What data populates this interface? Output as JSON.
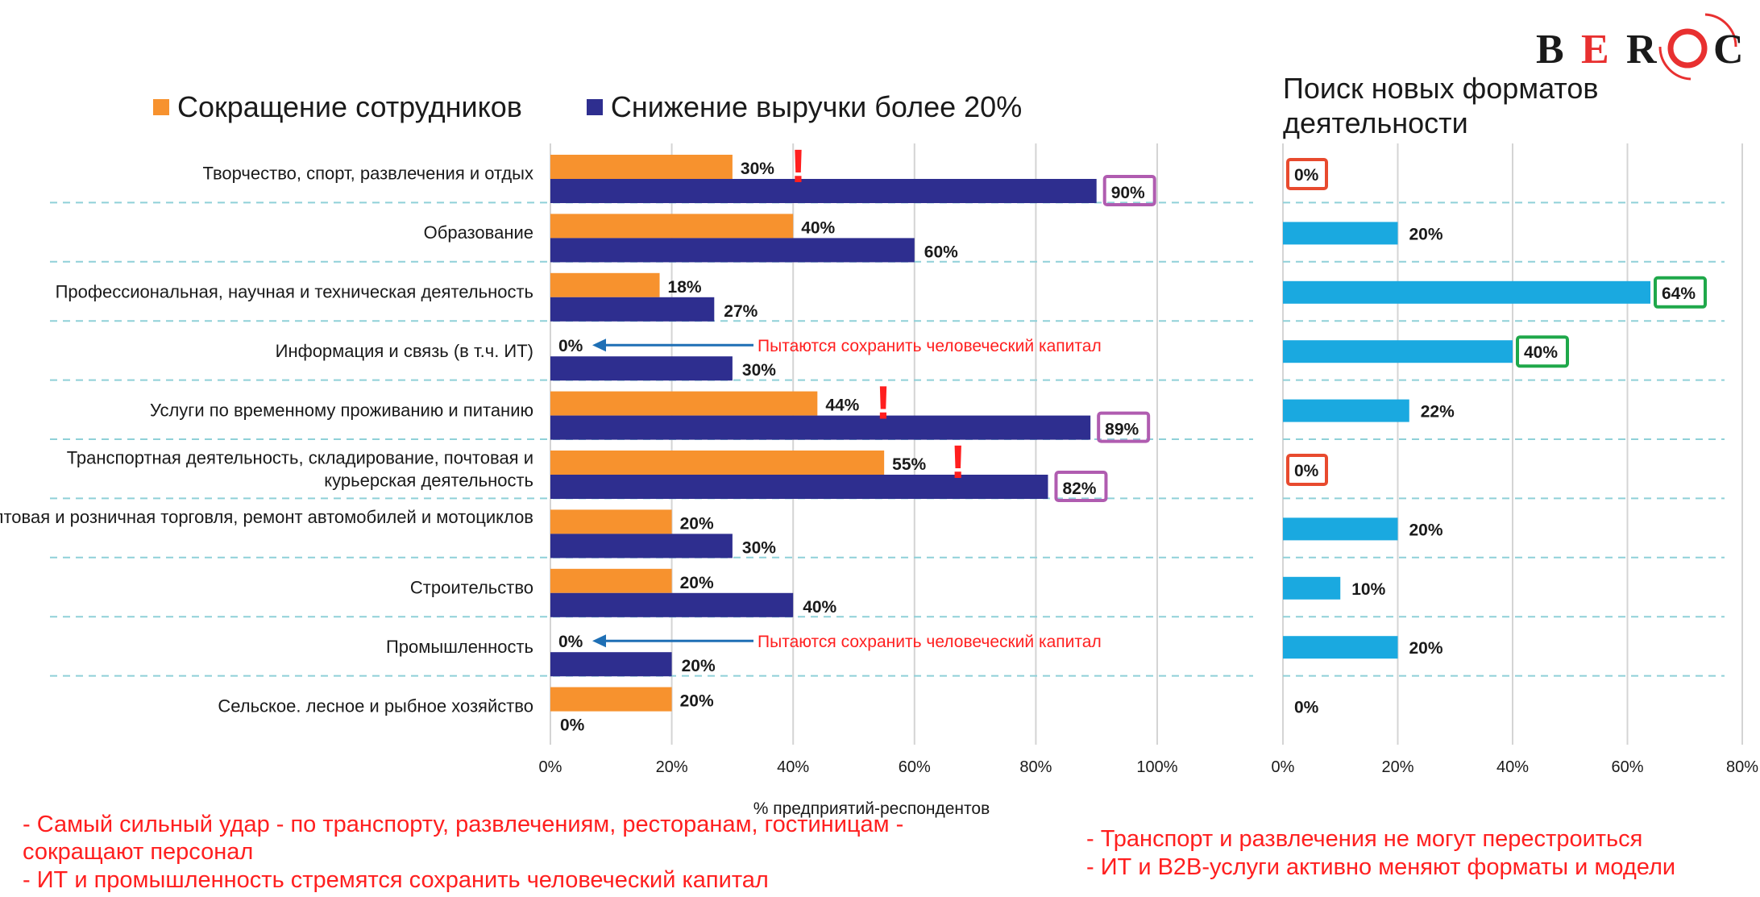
{
  "logo": {
    "text_before": "BE",
    "text_o": "R",
    "text_after": "C",
    "full": "BEROC"
  },
  "legend": {
    "staff_cut": {
      "label": "Сокращение сотрудников",
      "color": "#f7922e"
    },
    "revenue_drop": {
      "label": "Снижение  выручки более 20%",
      "color": "#2e2e8f"
    }
  },
  "right_panel_title": "Поиск новых форматов деятельности",
  "annotations": {
    "keep_capital": "Пытаются сохранить человеческий капитал",
    "exclamation": "!"
  },
  "notes_left": [
    "- Самый сильный удар -  по транспорту,  развлечениям, ресторанам, гостиницам -",
    "сокращают персонал",
    "- ИТ и промышленность стремятся сохранить человеческий капитал"
  ],
  "notes_right": [
    "- Транспорт и развлечения не могут перестроиться",
    "- ИТ и  B2B-услуги активно меняют форматы и модели"
  ],
  "colors": {
    "orange": "#f7922e",
    "navy": "#2e2e8f",
    "cyan": "#1aa9e0",
    "highlight_purple": "#b05cb0",
    "highlight_red": "#e84a2e",
    "highlight_green": "#1fa84a",
    "alert_red": "#ff1f1f",
    "arrow_blue": "#1e6fb5",
    "separator": "#8fd0d8",
    "gridline": "#d4d4d4"
  },
  "chart_data": [
    {
      "type": "bar",
      "orientation": "horizontal",
      "xlabel": "% предприятий-респондентов",
      "xlim": [
        0,
        100
      ],
      "xticks": [
        "0%",
        "20%",
        "40%",
        "60%",
        "80%",
        "100%"
      ],
      "categories": [
        "Творчество, спорт, развлечения и отдых",
        "Образование",
        "Профессиональная, научная и техническая деятельность",
        "Информация и связь (в т.ч. ИТ)",
        "Услуги по временному проживанию и питанию",
        "Транспортная деятельность, складирование, почтовая и курьерская деятельность",
        "Оптовая и розничная торговля, ремонт автомобилей и мотоциклов",
        "Строительство",
        "Промышленность",
        "Сельское. лесное и рыбное хозяйство"
      ],
      "series": [
        {
          "name": "Сокращение сотрудников",
          "values": [
            30,
            40,
            18,
            0,
            44,
            55,
            20,
            20,
            0,
            20
          ],
          "labels": [
            "30%",
            "40%",
            "18%",
            "0%",
            "44%",
            "55%",
            "20%",
            "20%",
            "0%",
            "20%"
          ]
        },
        {
          "name": "Снижение  выручки более 20%",
          "values": [
            90,
            60,
            27,
            30,
            89,
            82,
            30,
            40,
            20,
            0
          ],
          "labels": [
            "90%",
            "60%",
            "27%",
            "30%",
            "89%",
            "82%",
            "30%",
            "40%",
            "20%",
            "0%"
          ]
        }
      ],
      "highlighted_revenue": [
        0,
        4,
        5
      ],
      "exclamation_rows": [
        0,
        4,
        5
      ],
      "arrow_rows": [
        3,
        8
      ]
    },
    {
      "type": "bar",
      "orientation": "horizontal",
      "title": "Поиск новых форматов деятельности",
      "xlim": [
        0,
        80
      ],
      "xticks": [
        "0%",
        "20%",
        "40%",
        "60%",
        "80%"
      ],
      "values": [
        0,
        20,
        64,
        40,
        22,
        0,
        20,
        10,
        20,
        0
      ],
      "labels": [
        "0%",
        "20%",
        "64%",
        "40%",
        "22%",
        "0%",
        "20%",
        "10%",
        "20%",
        "0%"
      ],
      "highlight": {
        "0": "red",
        "2": "green",
        "3": "green",
        "5": "red"
      }
    }
  ]
}
